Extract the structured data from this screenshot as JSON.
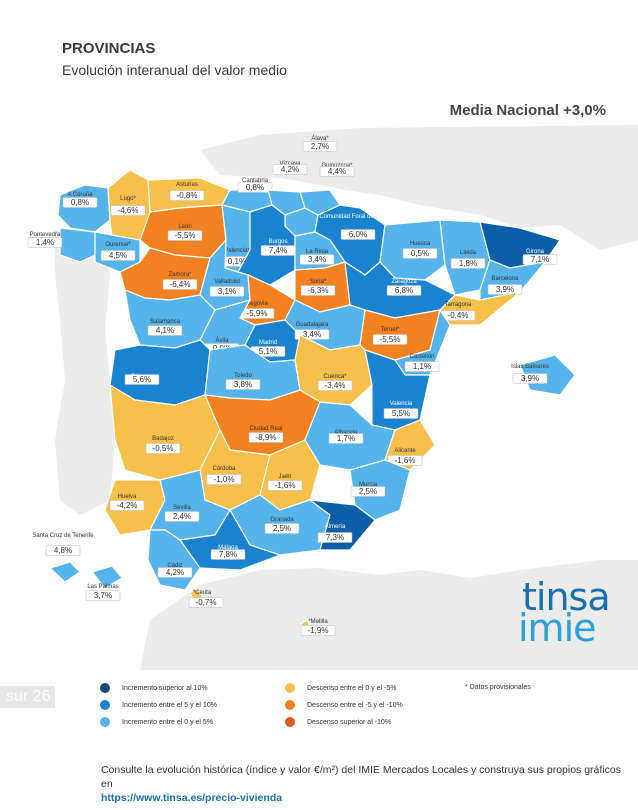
{
  "header": {
    "title": "PROVINCIAS",
    "subtitle": "Evolución interanual del valor medio",
    "national": "Media Nacional +3,0%"
  },
  "colors": {
    "cat1": "#0d5ea8",
    "cat2": "#1a83d0",
    "cat3": "#55b4ec",
    "cat4": "#f7c04a",
    "cat5": "#f58220",
    "cat6": "#e35b1e",
    "cat_dark": "#134b7f",
    "background_land": "#ececec"
  },
  "provinces": [
    {
      "id": "acoruna",
      "name": "A Coruña",
      "value": "0,8%",
      "cat": "cat3"
    },
    {
      "id": "lugo",
      "name": "Lugo*",
      "value": "-4,6%",
      "cat": "cat4"
    },
    {
      "id": "asturias",
      "name": "Asturias",
      "value": "-0,8%",
      "cat": "cat4"
    },
    {
      "id": "cantabria",
      "name": "Cantabria",
      "value": "0,8%",
      "cat": "cat3"
    },
    {
      "id": "vizcaya",
      "name": "Vizcaya",
      "value": "4,2%",
      "cat": "cat3"
    },
    {
      "id": "alava",
      "name": "Álava*",
      "value": "2,7%",
      "cat": "cat3"
    },
    {
      "id": "guipuzcoa",
      "name": "Guipúzcoa*",
      "value": "4,4%",
      "cat": "cat3"
    },
    {
      "id": "navarra",
      "name": "Comunidad Foral de Navarra",
      "value": "6,0%",
      "cat": "cat2"
    },
    {
      "id": "pontevedra",
      "name": "Pontevedra",
      "value": "1,4%",
      "cat": "cat3"
    },
    {
      "id": "ourense",
      "name": "Ourense*",
      "value": "4,5%",
      "cat": "cat3"
    },
    {
      "id": "leon",
      "name": "León",
      "value": "-5,5%",
      "cat": "cat5"
    },
    {
      "id": "palencia",
      "name": "Palencia*",
      "value": "0,1%",
      "cat": "cat3"
    },
    {
      "id": "burgos",
      "name": "Burgos",
      "value": "7,4%",
      "cat": "cat2"
    },
    {
      "id": "larioja",
      "name": "La Rioja",
      "value": "3,4%",
      "cat": "cat3"
    },
    {
      "id": "huesca",
      "name": "Huesca",
      "value": "0,5%",
      "cat": "cat3"
    },
    {
      "id": "lleida",
      "name": "Lleida",
      "value": "1,8%",
      "cat": "cat3"
    },
    {
      "id": "girona",
      "name": "Girona",
      "value": "7,1%",
      "cat": "cat1"
    },
    {
      "id": "barcelona",
      "name": "Barcelona",
      "value": "3,9%",
      "cat": "cat3"
    },
    {
      "id": "zamora",
      "name": "Zamora*",
      "value": "-6,4%",
      "cat": "cat5"
    },
    {
      "id": "valladolid",
      "name": "Valladolid",
      "value": "3,1%",
      "cat": "cat3"
    },
    {
      "id": "soria",
      "name": "Soria*",
      "value": "-6,3%",
      "cat": "cat5"
    },
    {
      "id": "zaragoza",
      "name": "Zaragoza",
      "value": "6,8%",
      "cat": "cat2"
    },
    {
      "id": "tarragona",
      "name": "Tarragona",
      "value": "-0,4%",
      "cat": "cat4"
    },
    {
      "id": "segovia",
      "name": "Segovia",
      "value": "-5,9%",
      "cat": "cat5"
    },
    {
      "id": "salamanca",
      "name": "Salamanca",
      "value": "4,1%",
      "cat": "cat3"
    },
    {
      "id": "avila",
      "name": "Ávila",
      "value": "0,0%",
      "cat": "cat3"
    },
    {
      "id": "madrid",
      "name": "Madrid",
      "value": "5,1%",
      "cat": "cat2"
    },
    {
      "id": "guadalajara",
      "name": "Guadalajara",
      "value": "3,4%",
      "cat": "cat3"
    },
    {
      "id": "teruel",
      "name": "Teruel*",
      "value": "-5,5%",
      "cat": "cat5"
    },
    {
      "id": "castellon",
      "name": "Castellón",
      "value": "1,1%",
      "cat": "cat3"
    },
    {
      "id": "baleares",
      "name": "Islas Baleares",
      "value": "3,9%",
      "cat": "cat3"
    },
    {
      "id": "caceres",
      "name": "Cáceres",
      "value": "5,6%",
      "cat": "cat2"
    },
    {
      "id": "toledo",
      "name": "Toledo",
      "value": "3,8%",
      "cat": "cat3"
    },
    {
      "id": "cuenca",
      "name": "Cuenca*",
      "value": "-3,4%",
      "cat": "cat4"
    },
    {
      "id": "valencia",
      "name": "Valencia",
      "value": "5,5%",
      "cat": "cat2"
    },
    {
      "id": "badajoz",
      "name": "Badajoz",
      "value": "-0,5%",
      "cat": "cat4"
    },
    {
      "id": "ciudadreal",
      "name": "Ciudad Real",
      "value": "-8,9%",
      "cat": "cat5"
    },
    {
      "id": "albacete",
      "name": "Albacete",
      "value": "1,7%",
      "cat": "cat3"
    },
    {
      "id": "alicante",
      "name": "Alicante",
      "value": "-1,6%",
      "cat": "cat4"
    },
    {
      "id": "cordoba",
      "name": "Córdoba",
      "value": "-1,0%",
      "cat": "cat4"
    },
    {
      "id": "jaen",
      "name": "Jaén",
      "value": "-1,6%",
      "cat": "cat4"
    },
    {
      "id": "murcia",
      "name": "Murcia",
      "value": "2,5%",
      "cat": "cat3"
    },
    {
      "id": "huelva",
      "name": "Huelva",
      "value": "-4,2%",
      "cat": "cat4"
    },
    {
      "id": "sevilla",
      "name": "Sevilla",
      "value": "2,4%",
      "cat": "cat3"
    },
    {
      "id": "granada",
      "name": "Granada",
      "value": "2,5%",
      "cat": "cat3"
    },
    {
      "id": "almeria",
      "name": "Almería",
      "value": "7,3%",
      "cat": "cat1"
    },
    {
      "id": "malaga",
      "name": "Málaga",
      "value": "7,8%",
      "cat": "cat2"
    },
    {
      "id": "cadiz",
      "name": "Cádiz",
      "value": "4,2%",
      "cat": "cat3"
    },
    {
      "id": "tenerife",
      "name": "Santa Cruz de Tenerife",
      "value": "4,8%",
      "cat": "cat3"
    },
    {
      "id": "laspalmas",
      "name": "Las Palmas",
      "value": "3,7%",
      "cat": "cat3"
    },
    {
      "id": "ceuta",
      "name": "*Ceuta",
      "value": "-0,7%",
      "cat": "cat4"
    },
    {
      "id": "melilla",
      "name": "*Melilla",
      "value": "-1,9%",
      "cat": "cat4"
    }
  ],
  "logo": {
    "line1": "tinsa",
    "line2": "imie"
  },
  "page_tab": "sur 26",
  "legend": [
    {
      "label": "Incremento superior al 10%",
      "color": "#134b7f"
    },
    {
      "label": "Incremento entre el 5 y el 10%",
      "color": "#1a83d0"
    },
    {
      "label": "Incremento entre el 0 y el 5%",
      "color": "#55b4ec"
    },
    {
      "label": "Descenso entre el 0 y el -5%",
      "color": "#f7c04a"
    },
    {
      "label": "Descenso entre el -5 y el -10%",
      "color": "#f58220"
    },
    {
      "label": "Descenso superior al -10%",
      "color": "#e35b1e"
    }
  ],
  "note": "* Datos provisionales",
  "footer": {
    "text": "Consulte la evolución histórica (índice y valor €/m²) del IMIE Mercados Locales y construya sus propios gráficos en",
    "link": "https://www.tinsa.es/precio-vivienda"
  }
}
